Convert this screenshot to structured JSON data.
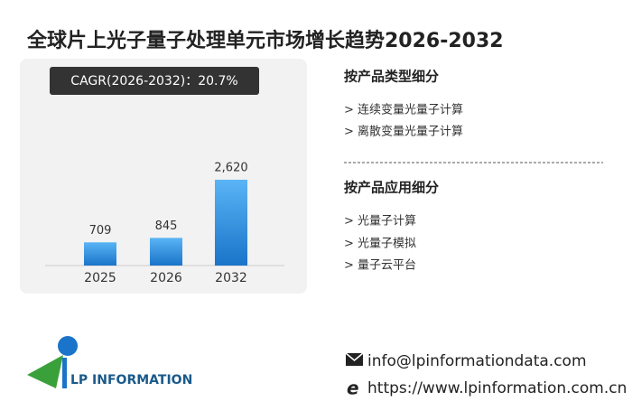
{
  "title": "全球片上光子量子处理单元市场增长趋势2026-2032",
  "cagr": "CAGR(2026-2032)：20.7%",
  "chart_data": {
    "type": "bar",
    "categories": [
      "2025",
      "2026",
      "2032"
    ],
    "values": [
      709,
      845,
      2620
    ],
    "value_labels": [
      "709",
      "845",
      "2,620"
    ],
    "color": "#2f8fe0"
  },
  "segments": [
    {
      "heading": "按产品类型细分",
      "items": [
        "> 连续变量光量子计算",
        "> 离散变量光量子计算"
      ]
    },
    {
      "heading": "按产品应用细分",
      "items": [
        "> 光量子计算",
        "> 光量子模拟",
        "> 量子云平台"
      ]
    }
  ],
  "logo": "LP INFORMATION",
  "contact": {
    "email": "info@lpinformationdata.com",
    "website": "https://www.lpinformation.com.cn"
  }
}
